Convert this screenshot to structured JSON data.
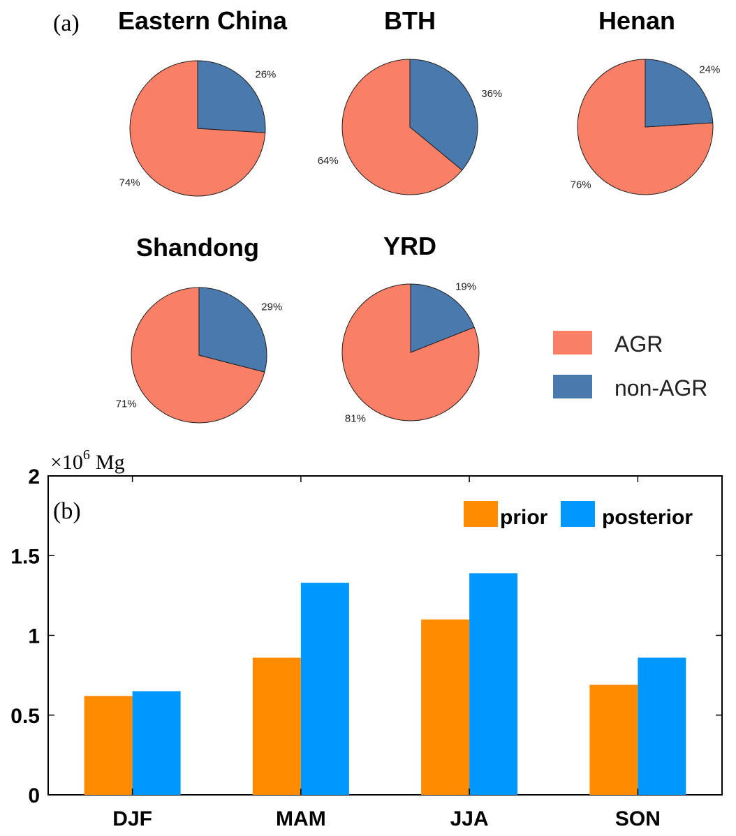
{
  "colors": {
    "agr": "#fa7f67",
    "non_agr": "#4a79ad",
    "prior": "#ff8c00",
    "posterior": "#0097ff",
    "axis": "#000000",
    "pie_edge": "#1f1f1f"
  },
  "panel_a": {
    "label": "(a)",
    "legend": {
      "agr": "AGR",
      "non_agr": "non-AGR"
    }
  },
  "panel_b": {
    "label": "(b)",
    "exponent_base": "×10",
    "exponent_power": "6",
    "unit": "Mg"
  },
  "chart_data": [
    {
      "type": "pie",
      "title": "Eastern China",
      "slices": [
        {
          "name": "AGR",
          "value": 74,
          "label": "74%"
        },
        {
          "name": "non-AGR",
          "value": 26,
          "label": "26%"
        }
      ]
    },
    {
      "type": "pie",
      "title": "BTH",
      "slices": [
        {
          "name": "AGR",
          "value": 64,
          "label": "64%"
        },
        {
          "name": "non-AGR",
          "value": 36,
          "label": "36%"
        }
      ]
    },
    {
      "type": "pie",
      "title": "Henan",
      "slices": [
        {
          "name": "AGR",
          "value": 76,
          "label": "76%"
        },
        {
          "name": "non-AGR",
          "value": 24,
          "label": "24%"
        }
      ]
    },
    {
      "type": "pie",
      "title": "Shandong",
      "slices": [
        {
          "name": "AGR",
          "value": 71,
          "label": "71%"
        },
        {
          "name": "non-AGR",
          "value": 29,
          "label": "29%"
        }
      ]
    },
    {
      "type": "pie",
      "title": "YRD",
      "slices": [
        {
          "name": "AGR",
          "value": 81,
          "label": "81%"
        },
        {
          "name": "non-AGR",
          "value": 19,
          "label": "19%"
        }
      ]
    },
    {
      "type": "bar",
      "categories": [
        "DJF",
        "MAM",
        "JJA",
        "SON"
      ],
      "series": [
        {
          "name": "prior",
          "values": [
            0.62,
            0.86,
            1.1,
            0.69
          ]
        },
        {
          "name": "posterior",
          "values": [
            0.65,
            1.33,
            1.39,
            0.86
          ]
        }
      ],
      "ylim": [
        0,
        2
      ],
      "yticks": [
        0,
        0.5,
        1,
        1.5,
        2
      ],
      "ytick_labels": [
        "0",
        "0.5",
        "1",
        "1.5",
        "2"
      ],
      "legend_position": "top-right",
      "grid": false
    }
  ]
}
